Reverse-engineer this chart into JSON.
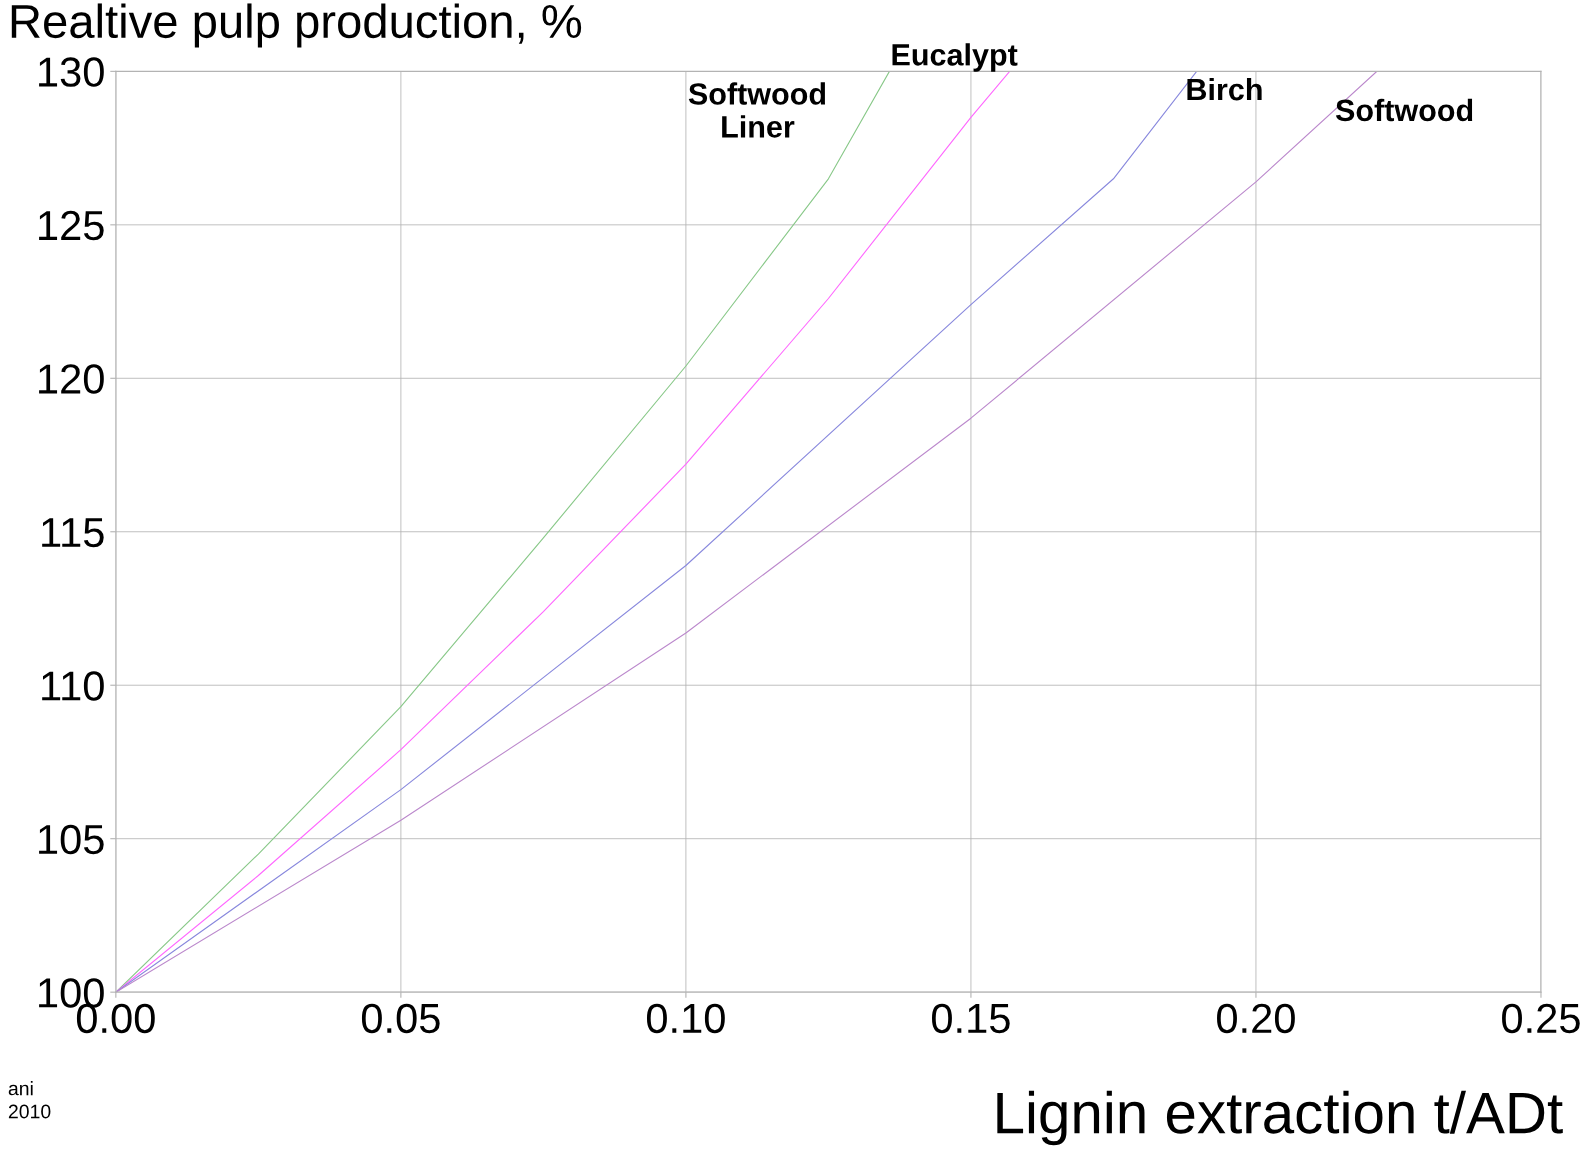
{
  "chart_data": {
    "type": "line",
    "ylabel": "Realtive pulp production, %",
    "xlabel": "Lignin extraction t/ADt",
    "xlim": [
      0,
      0.25
    ],
    "ylim": [
      100,
      130
    ],
    "xticks": [
      {
        "value": 0,
        "label": "0.00"
      },
      {
        "value": 0.05,
        "label": "0.05"
      },
      {
        "value": 0.1,
        "label": "0.10"
      },
      {
        "value": 0.15,
        "label": "0.15"
      },
      {
        "value": 0.2,
        "label": "0.20"
      },
      {
        "value": 0.25,
        "label": "0.25"
      }
    ],
    "yticks": [
      100,
      105,
      110,
      115,
      120,
      125,
      130
    ],
    "grid": true,
    "legend": false,
    "marker": "none",
    "line_style": "solid",
    "series": [
      {
        "name": "Softwood\nLiner",
        "color": "#88c888",
        "x": [
          0,
          0.025,
          0.05,
          0.075,
          0.1,
          0.125,
          0.1357
        ],
        "values": [
          100,
          104.5,
          109.3,
          114.8,
          120.4,
          126.5,
          130
        ]
      },
      {
        "name": "Eucalypt",
        "color": "#ff66ff",
        "x": [
          0,
          0.025,
          0.05,
          0.075,
          0.1,
          0.125,
          0.15,
          0.1568
        ],
        "values": [
          100,
          103.8,
          107.9,
          112.4,
          117.2,
          122.6,
          128.5,
          130
        ]
      },
      {
        "name": "Birch",
        "color": "#8888dd",
        "x": [
          0,
          0.05,
          0.1,
          0.15,
          0.175,
          0.1896
        ],
        "values": [
          100,
          106.6,
          113.9,
          122.4,
          126.5,
          130
        ]
      },
      {
        "name": "Softwood",
        "color": "#bb88cc",
        "x": [
          0,
          0.05,
          0.1,
          0.15,
          0.2,
          0.2212
        ],
        "values": [
          100,
          105.6,
          111.7,
          118.7,
          126.4,
          130
        ]
      }
    ],
    "annotations": [
      "ani",
      "2010"
    ]
  }
}
